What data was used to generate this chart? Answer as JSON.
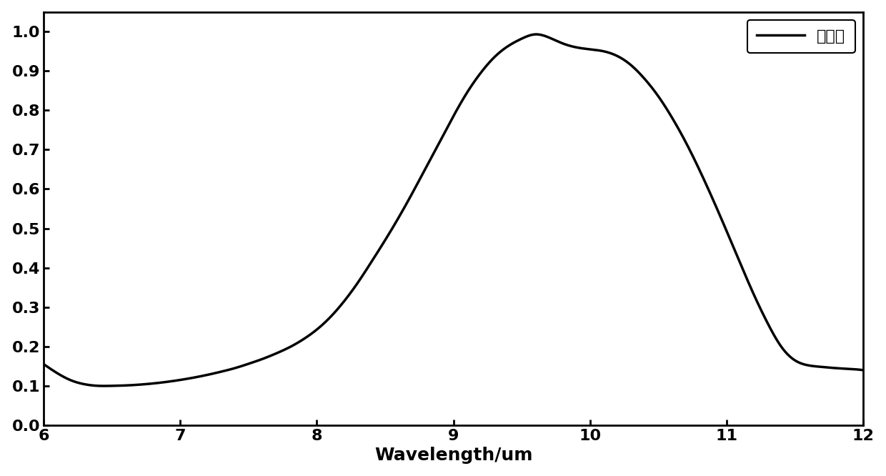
{
  "xlabel": "Wavelength/um",
  "xlim": [
    6,
    12
  ],
  "ylim": [
    0.0,
    1.05
  ],
  "xticks": [
    6,
    7,
    8,
    9,
    10,
    11,
    12
  ],
  "yticks": [
    0.0,
    0.1,
    0.2,
    0.3,
    0.4,
    0.5,
    0.6,
    0.7,
    0.8,
    0.9,
    1.0
  ],
  "line_color": "#000000",
  "line_width": 2.5,
  "legend_label": "吸收率",
  "background_color": "#ffffff",
  "xlabel_fontsize": 18,
  "tick_fontsize": 16,
  "legend_fontsize": 16,
  "curve_x": [
    6.0,
    6.1,
    6.2,
    6.3,
    6.4,
    6.5,
    6.6,
    6.7,
    6.8,
    6.9,
    7.0,
    7.1,
    7.2,
    7.3,
    7.4,
    7.5,
    7.6,
    7.7,
    7.8,
    7.9,
    8.0,
    8.1,
    8.2,
    8.3,
    8.4,
    8.5,
    8.6,
    8.7,
    8.8,
    8.9,
    9.0,
    9.1,
    9.2,
    9.3,
    9.4,
    9.5,
    9.6,
    9.7,
    9.8,
    9.9,
    10.0,
    10.1,
    10.2,
    10.3,
    10.4,
    10.5,
    10.6,
    10.7,
    10.8,
    10.9,
    11.0,
    11.1,
    11.2,
    11.3,
    11.4,
    11.5,
    11.6,
    11.7,
    11.8,
    11.9,
    12.0
  ],
  "curve_y": [
    0.155,
    0.132,
    0.114,
    0.104,
    0.1,
    0.1,
    0.101,
    0.103,
    0.106,
    0.11,
    0.115,
    0.121,
    0.128,
    0.136,
    0.145,
    0.156,
    0.168,
    0.182,
    0.198,
    0.218,
    0.243,
    0.275,
    0.315,
    0.362,
    0.415,
    0.47,
    0.528,
    0.59,
    0.655,
    0.72,
    0.785,
    0.845,
    0.895,
    0.935,
    0.963,
    0.982,
    0.993,
    0.985,
    0.97,
    0.96,
    0.955,
    0.95,
    0.938,
    0.915,
    0.88,
    0.836,
    0.782,
    0.72,
    0.65,
    0.574,
    0.494,
    0.412,
    0.332,
    0.26,
    0.2,
    0.165,
    0.152,
    0.148,
    0.145,
    0.143,
    0.14
  ]
}
